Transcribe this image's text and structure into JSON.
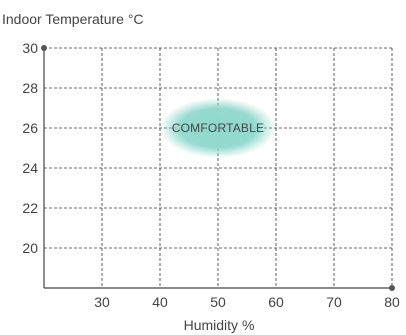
{
  "chart_data": {
    "type": "scatter",
    "title": "",
    "ylabel": "Indoor Temperature °C",
    "xlabel": "Humidity %",
    "xlim": [
      20,
      80
    ],
    "ylim": [
      18,
      30
    ],
    "xticks": [
      30,
      40,
      50,
      60,
      70,
      80
    ],
    "yticks": [
      20,
      22,
      24,
      26,
      28,
      30
    ],
    "grid": true,
    "grid_style": "dashed",
    "zones": [
      {
        "label": "COMFORTABLE",
        "x_range": [
          40,
          60
        ],
        "y_range": [
          24.5,
          27.5
        ],
        "center": [
          50,
          26
        ],
        "color": "#8fd8cd"
      }
    ]
  }
}
